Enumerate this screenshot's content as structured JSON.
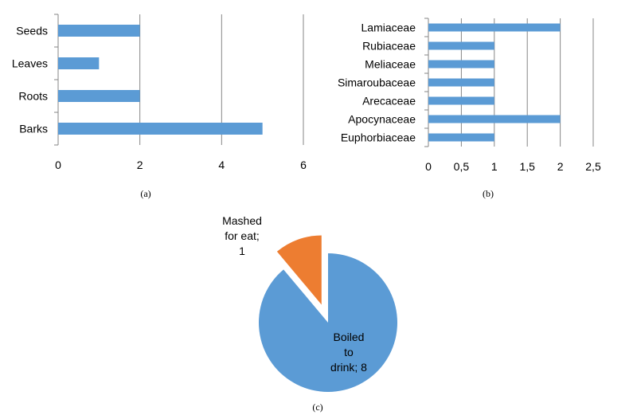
{
  "chart_data": [
    {
      "type": "bar",
      "orientation": "horizontal",
      "caption": "(a)",
      "categories": [
        "Seeds",
        "Leaves",
        "Roots",
        "Barks"
      ],
      "values": [
        2,
        1,
        2,
        5
      ],
      "xlim": [
        0,
        6
      ],
      "xticks": [
        "0",
        "2",
        "4",
        "6"
      ],
      "grid": true,
      "color": "#5B9BD5"
    },
    {
      "type": "bar",
      "orientation": "horizontal",
      "caption": "(b)",
      "categories": [
        "Lamiaceae",
        "Rubiaceae",
        "Meliaceae",
        "Simaroubaceae",
        "Arecaceae",
        "Apocynaceae",
        "Euphorbiaceae"
      ],
      "values": [
        2,
        1,
        1,
        1,
        1,
        2,
        1
      ],
      "xlim": [
        0,
        2.5
      ],
      "xticks": [
        "0",
        "0,5",
        "1",
        "1,5",
        "2",
        "2,5"
      ],
      "grid": true,
      "color": "#5B9BD5"
    },
    {
      "type": "pie",
      "caption": "(c)",
      "slices": [
        {
          "label_lines": [
            "Boiled",
            "to",
            "drink; 8"
          ],
          "value": 8,
          "color": "#5B9BD5"
        },
        {
          "label_lines": [
            "Mashed",
            "for eat;",
            "1"
          ],
          "value": 1,
          "color": "#ED7D31",
          "exploded": true
        }
      ]
    }
  ]
}
